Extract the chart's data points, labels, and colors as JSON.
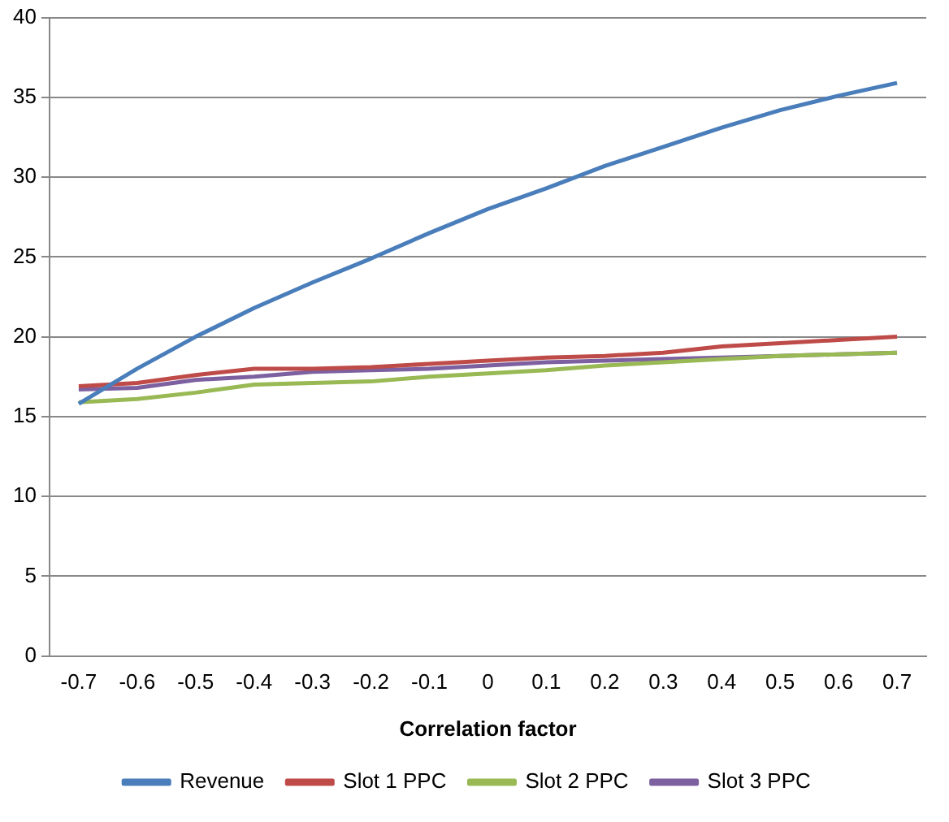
{
  "chart_data": {
    "type": "line",
    "xlabel": "Correlation factor",
    "categories": [
      "-0.7",
      "-0.6",
      "-0.5",
      "-0.4",
      "-0.3",
      "-0.2",
      "-0.1",
      "0",
      "0.1",
      "0.2",
      "0.3",
      "0.4",
      "0.5",
      "0.6",
      "0.7"
    ],
    "series": [
      {
        "name": "Revenue",
        "color": "#4a7ebb",
        "values": [
          15.8,
          18.0,
          20.0,
          21.8,
          23.4,
          24.9,
          26.5,
          28.0,
          29.3,
          30.7,
          31.9,
          33.1,
          34.2,
          35.1,
          35.9
        ]
      },
      {
        "name": "Slot 1 PPC",
        "color": "#be4b48",
        "values": [
          16.9,
          17.1,
          17.6,
          18.0,
          18.0,
          18.1,
          18.3,
          18.5,
          18.7,
          18.8,
          19.0,
          19.4,
          19.6,
          19.8,
          20.0
        ]
      },
      {
        "name": "Slot 2 PPC",
        "color": "#98b954",
        "values": [
          15.9,
          16.1,
          16.5,
          17.0,
          17.1,
          17.2,
          17.5,
          17.7,
          17.9,
          18.2,
          18.4,
          18.6,
          18.8,
          18.9,
          19.0
        ]
      },
      {
        "name": "Slot 3 PPC",
        "color": "#7d60a0",
        "values": [
          16.7,
          16.8,
          17.3,
          17.5,
          17.8,
          17.9,
          18.0,
          18.2,
          18.4,
          18.5,
          18.6,
          18.7,
          18.8,
          18.9,
          19.0
        ]
      }
    ],
    "ylim": [
      0,
      40
    ],
    "yticks": [
      0,
      5,
      10,
      15,
      20,
      25,
      30,
      35,
      40
    ],
    "grid": "y",
    "legend": "bottom",
    "marker": "none",
    "line_style": "solid"
  }
}
